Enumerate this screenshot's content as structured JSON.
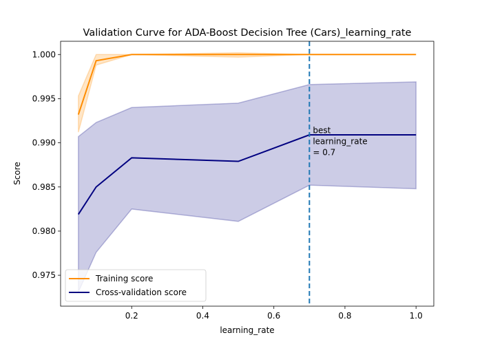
{
  "chart_data": {
    "type": "line",
    "title": "Validation Curve for ADA-Boost Decision Tree (Cars)_learning_rate",
    "xlabel": "learning_rate",
    "ylabel": "Score",
    "xlim": [
      0.0,
      1.05
    ],
    "ylim": [
      0.9715,
      1.0015
    ],
    "xticks": [
      0.2,
      0.4,
      0.6,
      0.8,
      1.0
    ],
    "xtick_labels": [
      "0.2",
      "0.4",
      "0.6",
      "0.8",
      "1.0"
    ],
    "yticks": [
      0.975,
      0.98,
      0.985,
      0.99,
      0.995,
      1.0
    ],
    "ytick_labels": [
      "0.975",
      "0.980",
      "0.985",
      "0.990",
      "0.995",
      "1.000"
    ],
    "grid": false,
    "legend_position": "lower-left",
    "x": [
      0.05,
      0.1,
      0.2,
      0.5,
      0.7,
      1.0
    ],
    "series": [
      {
        "name": "Training score",
        "color": "#ff8c00",
        "values": [
          0.9932,
          0.9993,
          1.0,
          1.0,
          1.0,
          1.0
        ],
        "band_upper": [
          0.9953,
          1.0,
          1.0,
          1.0002,
          1.0,
          1.0
        ],
        "band_lower": [
          0.9912,
          0.9988,
          1.0,
          0.9997,
          1.0,
          1.0
        ]
      },
      {
        "name": "Cross-validation score",
        "color": "#000080",
        "values": [
          0.9819,
          0.985,
          0.9883,
          0.9879,
          0.9909,
          0.9909
        ],
        "band_upper": [
          0.9907,
          0.9923,
          0.994,
          0.9945,
          0.9966,
          0.9969
        ],
        "band_lower": [
          0.9731,
          0.9776,
          0.9825,
          0.9811,
          0.9852,
          0.9848
        ]
      }
    ],
    "reference_line": {
      "x": 0.7,
      "color": "#1f77b4",
      "annotation": [
        "best",
        "learning_rate",
        "= 0.7"
      ]
    }
  }
}
